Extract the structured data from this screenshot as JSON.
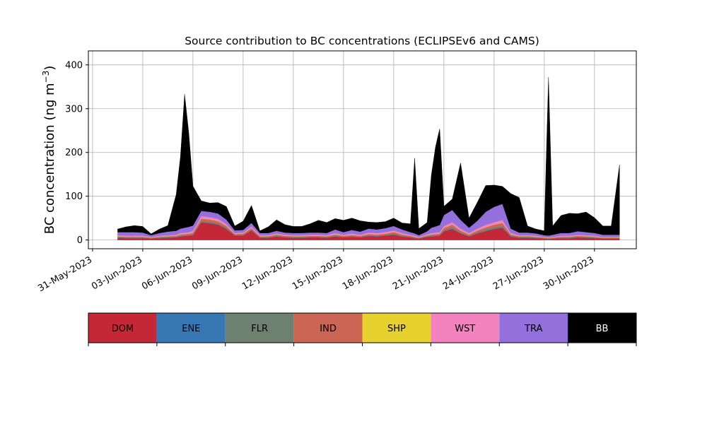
{
  "chart_data": {
    "type": "area",
    "title": "Source contribution to BC concentrations (ECLIPSEv6 and CAMS)",
    "ylabel": "BC concentration (ng m",
    "ylabel_sup": "−3",
    "ylabel_close": ")",
    "xlabel": "",
    "stacked": true,
    "grid": true,
    "xlim": [
      "2023-05-30T18:00",
      "2023-07-02T12:00"
    ],
    "ylim": [
      -20,
      432
    ],
    "yticks": [
      0,
      100,
      200,
      300,
      400
    ],
    "xticks": [
      "2023-05-31",
      "2023-06-03",
      "2023-06-06",
      "2023-06-09",
      "2023-06-12",
      "2023-06-15",
      "2023-06-18",
      "2023-06-21",
      "2023-06-24",
      "2023-06-27",
      "2023-06-30"
    ],
    "xtick_labels": [
      "31-May-2023",
      "03-Jun-2023",
      "06-Jun-2023",
      "09-Jun-2023",
      "12-Jun-2023",
      "15-Jun-2023",
      "18-Jun-2023",
      "21-Jun-2023",
      "24-Jun-2023",
      "27-Jun-2023",
      "30-Jun-2023"
    ],
    "legend_position": "below",
    "x": [
      "2023-06-01T12:00",
      "2023-06-02T00:00",
      "2023-06-02T12:00",
      "2023-06-03T00:00",
      "2023-06-03T12:00",
      "2023-06-04T00:00",
      "2023-06-04T12:00",
      "2023-06-05T00:00",
      "2023-06-05T06:00",
      "2023-06-05T12:00",
      "2023-06-05T18:00",
      "2023-06-06T00:00",
      "2023-06-06T12:00",
      "2023-06-07T00:00",
      "2023-06-07T12:00",
      "2023-06-08T00:00",
      "2023-06-08T12:00",
      "2023-06-09T00:00",
      "2023-06-09T12:00",
      "2023-06-10T00:00",
      "2023-06-10T12:00",
      "2023-06-11T00:00",
      "2023-06-11T12:00",
      "2023-06-12T00:00",
      "2023-06-12T12:00",
      "2023-06-13T00:00",
      "2023-06-13T12:00",
      "2023-06-14T00:00",
      "2023-06-14T12:00",
      "2023-06-15T00:00",
      "2023-06-15T12:00",
      "2023-06-16T00:00",
      "2023-06-16T12:00",
      "2023-06-17T00:00",
      "2023-06-17T12:00",
      "2023-06-18T00:00",
      "2023-06-18T12:00",
      "2023-06-19T00:00",
      "2023-06-19T06:00",
      "2023-06-19T12:00",
      "2023-06-20T00:00",
      "2023-06-20T06:00",
      "2023-06-20T12:00",
      "2023-06-20T18:00",
      "2023-06-21T00:00",
      "2023-06-21T12:00",
      "2023-06-22T00:00",
      "2023-06-22T12:00",
      "2023-06-23T00:00",
      "2023-06-23T12:00",
      "2023-06-24T00:00",
      "2023-06-24T12:00",
      "2023-06-25T00:00",
      "2023-06-25T12:00",
      "2023-06-26T00:00",
      "2023-06-26T12:00",
      "2023-06-27T00:00",
      "2023-06-27T06:00",
      "2023-06-27T12:00",
      "2023-06-28T00:00",
      "2023-06-28T12:00",
      "2023-06-29T00:00",
      "2023-06-29T12:00",
      "2023-06-30T00:00",
      "2023-06-30T12:00",
      "2023-07-01T00:00",
      "2023-07-01T12:00"
    ],
    "series": [
      {
        "name": "DOM",
        "color": "#c42836",
        "values": [
          5,
          4,
          4,
          4,
          3,
          4,
          5,
          6,
          8,
          9,
          10,
          11,
          40,
          38,
          35,
          25,
          10,
          10,
          22,
          5,
          5,
          8,
          6,
          5,
          5,
          6,
          6,
          5,
          8,
          6,
          7,
          6,
          9,
          8,
          10,
          12,
          8,
          6,
          4,
          3,
          7,
          8,
          9,
          10,
          20,
          25,
          15,
          8,
          15,
          20,
          25,
          28,
          8,
          5,
          5,
          4,
          3,
          2,
          3,
          4,
          4,
          6,
          5,
          4,
          3,
          3,
          3
        ]
      },
      {
        "name": "ENE",
        "color": "#3778b4",
        "values": [
          0.5,
          0.5,
          0.5,
          0.5,
          0.5,
          0.5,
          0.5,
          0.5,
          0.5,
          0.5,
          0.5,
          0.5,
          1,
          1,
          1,
          1,
          0.5,
          0.5,
          0.5,
          0.5,
          0.5,
          0.5,
          0.5,
          0.5,
          0.5,
          0.5,
          0.5,
          0.5,
          0.5,
          0.5,
          0.5,
          0.5,
          0.5,
          0.5,
          0.5,
          0.5,
          0.5,
          0.5,
          0.5,
          0.5,
          0.5,
          0.5,
          0.5,
          0.5,
          0.5,
          1,
          0.5,
          0.5,
          0.5,
          1,
          1,
          1,
          0.5,
          0.5,
          0.5,
          0.5,
          0.5,
          0.5,
          0.5,
          0.5,
          0.5,
          0.5,
          0.5,
          0.5,
          0.5,
          0.5,
          0.5
        ]
      },
      {
        "name": "FLR",
        "color": "#6e8070",
        "values": [
          1,
          1,
          1,
          1,
          1,
          1,
          1,
          1,
          1,
          1,
          1,
          1,
          2,
          2,
          2,
          2,
          1,
          1,
          1,
          1,
          1,
          1,
          1,
          1,
          1,
          1,
          1,
          1,
          1,
          1,
          1,
          1,
          1,
          1,
          1,
          2,
          1,
          1,
          1,
          1,
          1,
          1,
          1,
          1,
          2,
          3,
          2,
          1,
          2,
          3,
          3,
          3,
          1,
          1,
          1,
          1,
          1,
          1,
          1,
          1,
          1,
          1,
          1,
          1,
          1,
          1,
          1
        ]
      },
      {
        "name": "IND",
        "color": "#cc6654",
        "values": [
          2,
          2,
          2,
          2,
          1,
          2,
          2,
          2,
          3,
          3,
          3,
          4,
          6,
          6,
          5,
          4,
          2,
          3,
          4,
          2,
          2,
          3,
          2,
          2,
          2,
          2,
          2,
          2,
          3,
          2,
          3,
          2,
          3,
          3,
          3,
          4,
          3,
          2,
          2,
          1,
          2,
          3,
          3,
          3,
          5,
          6,
          4,
          3,
          4,
          5,
          6,
          7,
          3,
          2,
          2,
          2,
          1,
          1,
          1,
          2,
          2,
          2,
          2,
          2,
          1,
          1,
          1
        ]
      },
      {
        "name": "SHP",
        "color": "#e6d12e",
        "values": [
          0.5,
          0.5,
          0.5,
          0.5,
          0.5,
          0.5,
          0.5,
          0.5,
          0.5,
          0.5,
          0.5,
          0.5,
          0.5,
          0.5,
          0.5,
          0.5,
          0.5,
          0.5,
          0.5,
          0.5,
          0.5,
          0.5,
          0.5,
          0.5,
          0.5,
          0.5,
          0.5,
          0.5,
          0.5,
          0.5,
          0.5,
          0.5,
          0.5,
          0.5,
          0.5,
          0.5,
          0.5,
          0.5,
          0.5,
          0.5,
          0.5,
          0.5,
          0.5,
          0.5,
          0.5,
          0.5,
          0.5,
          0.5,
          0.5,
          0.5,
          0.5,
          0.5,
          0.5,
          0.5,
          0.5,
          0.5,
          0.5,
          0.5,
          0.5,
          0.5,
          0.5,
          0.5,
          0.5,
          0.5,
          0.5,
          0.5,
          0.5
        ]
      },
      {
        "name": "WST",
        "color": "#f283be",
        "values": [
          2,
          2,
          2,
          2,
          1,
          2,
          2,
          2,
          3,
          3,
          3,
          4,
          5,
          5,
          5,
          4,
          2,
          2,
          3,
          2,
          2,
          2,
          2,
          2,
          2,
          2,
          2,
          2,
          3,
          2,
          3,
          2,
          3,
          3,
          3,
          3,
          3,
          2,
          2,
          1,
          2,
          3,
          3,
          3,
          4,
          5,
          4,
          3,
          4,
          5,
          5,
          6,
          3,
          2,
          2,
          2,
          1,
          1,
          1,
          2,
          2,
          2,
          2,
          2,
          1,
          1,
          1
        ]
      },
      {
        "name": "TRA",
        "color": "#9370db",
        "values": [
          7,
          8,
          8,
          7,
          4,
          6,
          8,
          9,
          10,
          11,
          12,
          12,
          12,
          12,
          12,
          10,
          6,
          6,
          8,
          5,
          5,
          6,
          5,
          5,
          5,
          5,
          5,
          5,
          8,
          6,
          8,
          7,
          9,
          8,
          9,
          10,
          8,
          6,
          5,
          4,
          7,
          12,
          14,
          16,
          25,
          28,
          20,
          12,
          18,
          30,
          35,
          37,
          10,
          6,
          6,
          5,
          4,
          4,
          5,
          6,
          6,
          8,
          7,
          6,
          5,
          5,
          5
        ]
      },
      {
        "name": "BB",
        "color": "#000000",
        "values": [
          7,
          12,
          15,
          14,
          3,
          9,
          14,
          83,
          164,
          305,
          215,
          90,
          23,
          20,
          25,
          30,
          10,
          20,
          40,
          5,
          14,
          25,
          18,
          15,
          15,
          20,
          28,
          24,
          25,
          27,
          27,
          25,
          15,
          16,
          15,
          18,
          15,
          19,
          172,
          15,
          20,
          120,
          182,
          220,
          20,
          25,
          130,
          22,
          42,
          60,
          50,
          40,
          80,
          80,
          15,
          10,
          10,
          362,
          20,
          40,
          45,
          40,
          46,
          35,
          20,
          20,
          160
        ]
      }
    ]
  }
}
